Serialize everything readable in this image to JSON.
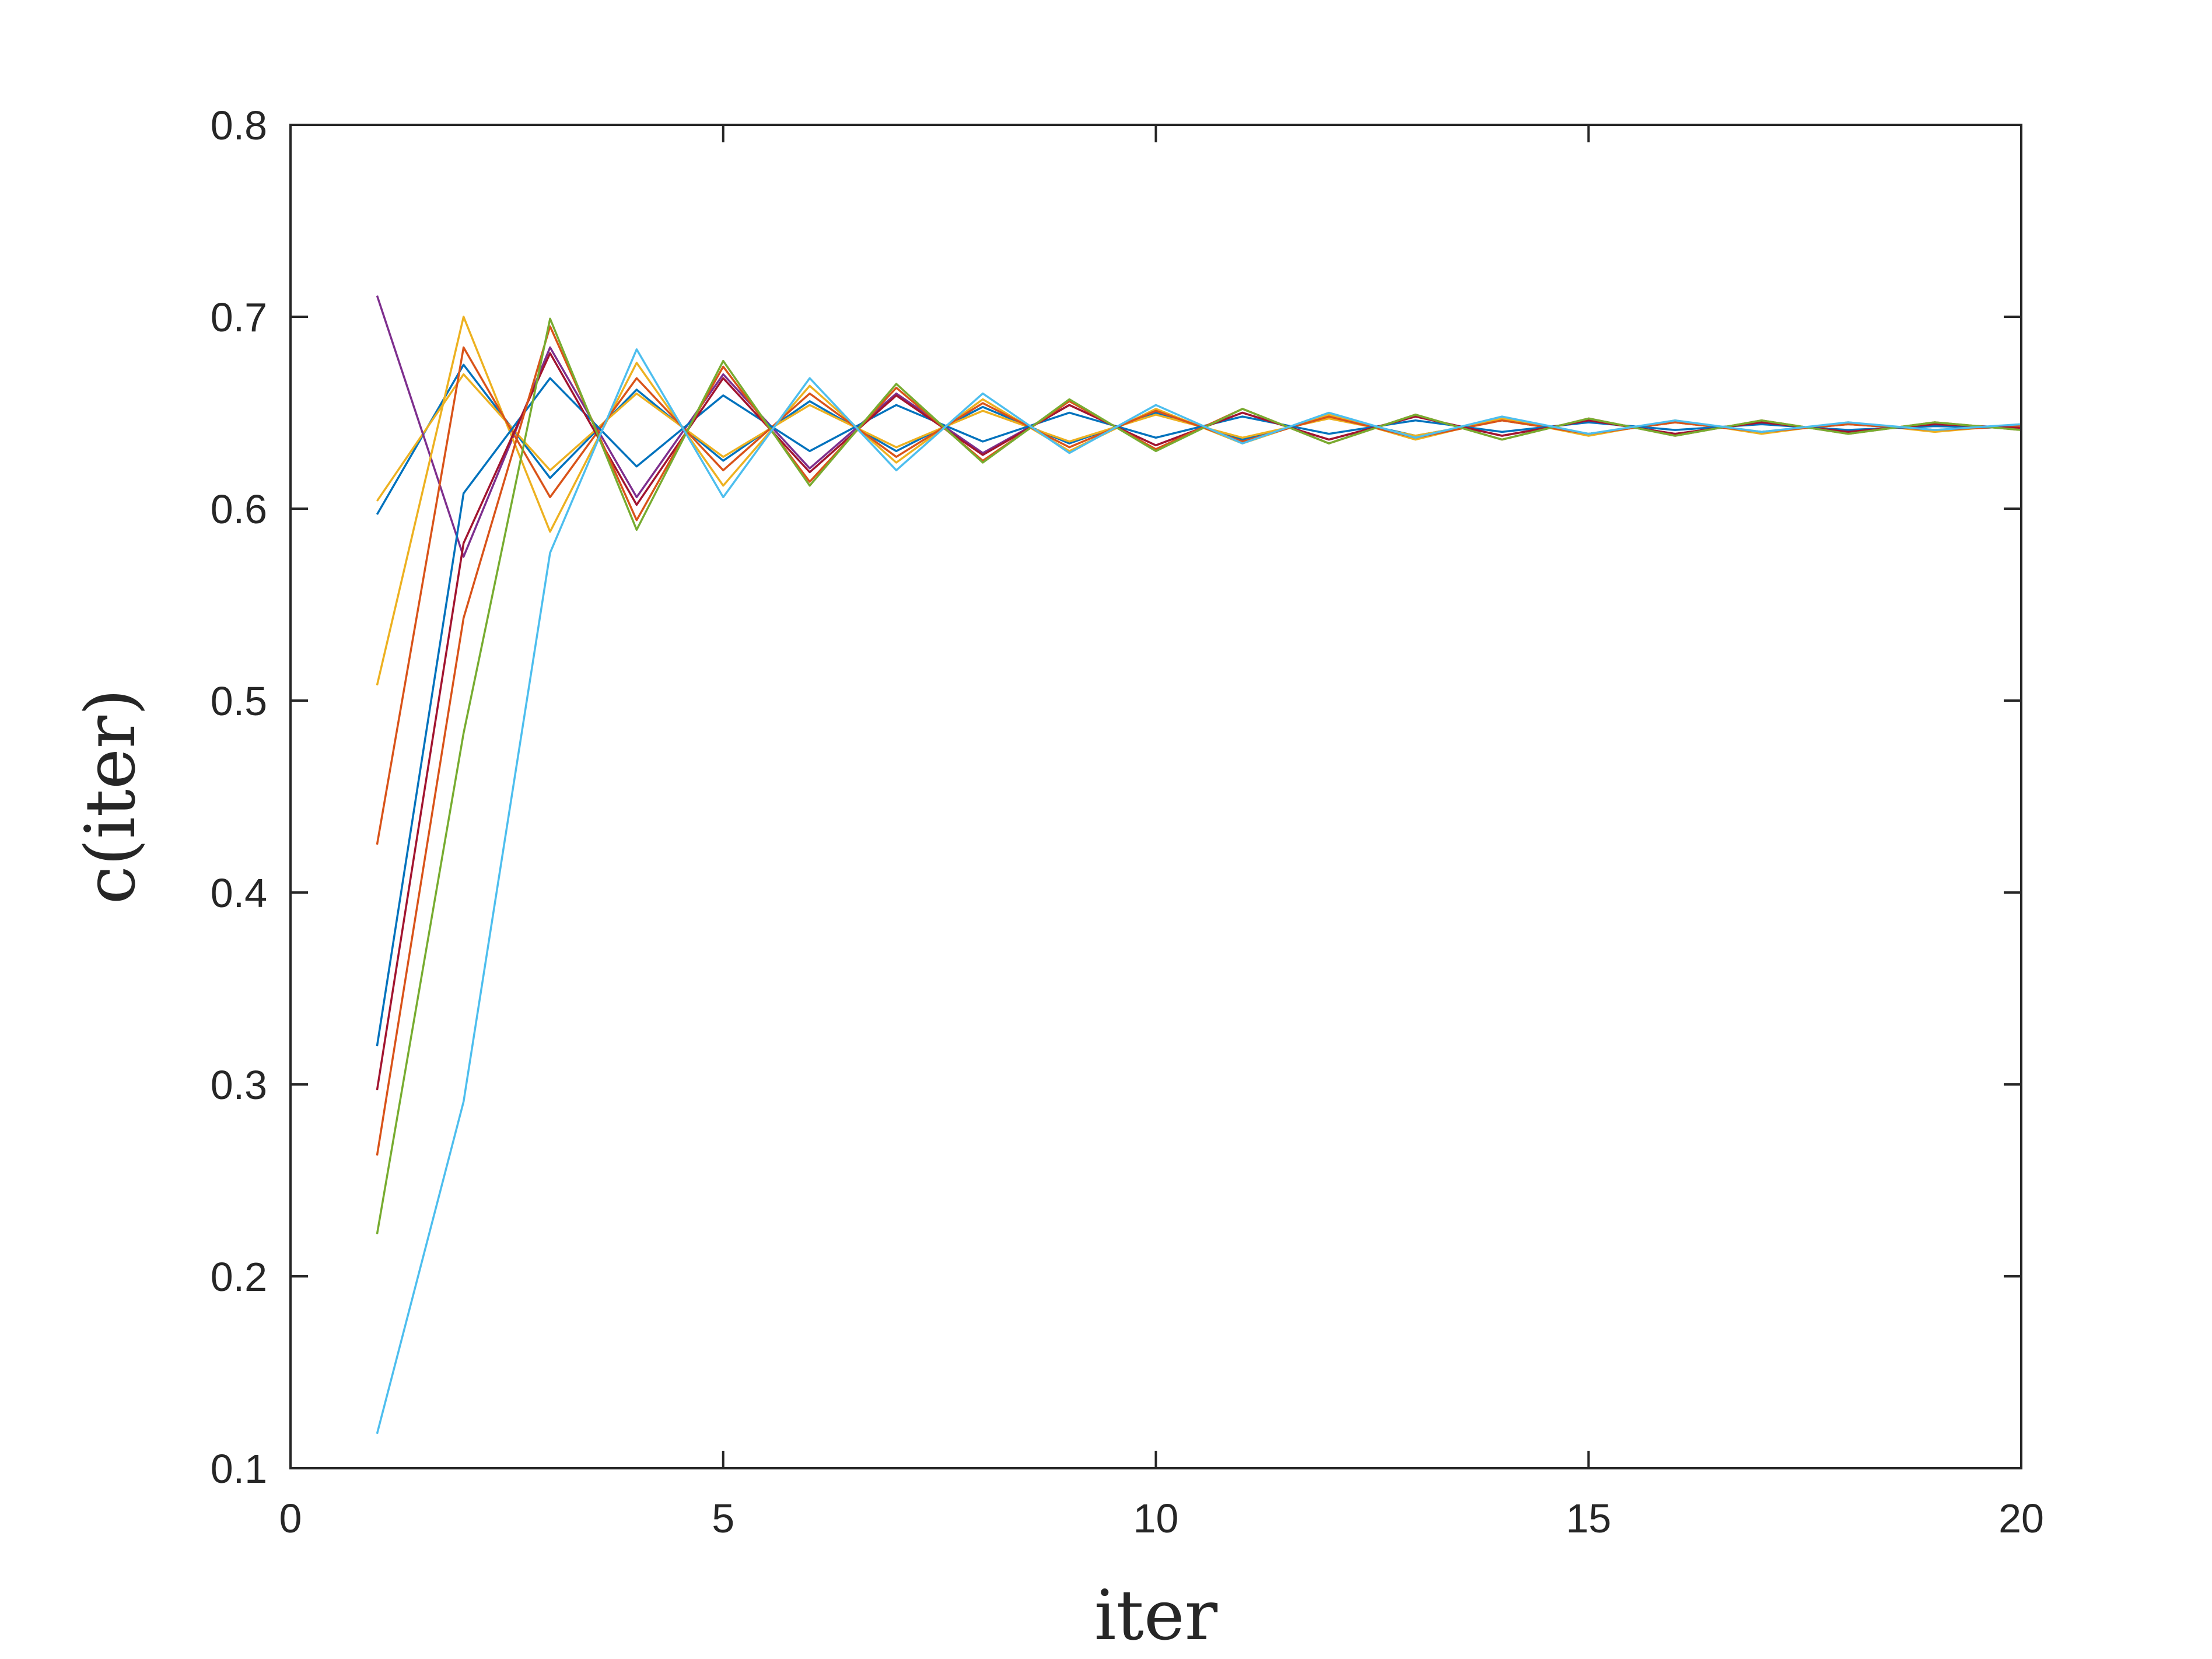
{
  "chart_data": {
    "type": "line",
    "title": "",
    "xlabel": "iter",
    "ylabel": "c(iter)",
    "xlim": [
      0,
      20
    ],
    "ylim": [
      0.1,
      0.8
    ],
    "xticks": [
      0,
      5,
      10,
      15,
      20
    ],
    "yticks": [
      0.1,
      0.2,
      0.3,
      0.4,
      0.5,
      0.6,
      0.7,
      0.8
    ],
    "xtick_labels": [
      "0",
      "5",
      "10",
      "15",
      "20"
    ],
    "ytick_labels": [
      "0.1",
      "0.2",
      "0.3",
      "0.4",
      "0.5",
      "0.6",
      "0.7",
      "0.8"
    ],
    "grid": false,
    "legend": "none",
    "x": [
      1,
      2,
      3,
      4,
      5,
      6,
      7,
      8,
      9,
      10,
      11,
      12,
      13,
      14,
      15,
      16,
      17,
      18,
      19,
      20
    ],
    "series": [
      {
        "color": "#0072BD",
        "values": [
          0.597,
          0.675,
          0.616,
          0.662,
          0.625,
          0.656,
          0.63,
          0.653,
          0.634,
          0.65,
          0.636,
          0.648,
          0.638,
          0.646,
          0.639,
          0.645,
          0.64,
          0.644,
          0.641,
          0.643
        ]
      },
      {
        "color": "#EDB120",
        "values": [
          0.604,
          0.67,
          0.62,
          0.66,
          0.627,
          0.654,
          0.632,
          0.651,
          0.635,
          0.649,
          0.637,
          0.647,
          0.638,
          0.646,
          0.639,
          0.645,
          0.64,
          0.644,
          0.641,
          0.643
        ]
      },
      {
        "color": "#7E2F8E",
        "values": [
          0.711,
          0.575,
          0.684,
          0.606,
          0.67,
          0.621,
          0.66,
          0.629,
          0.654,
          0.633,
          0.65,
          0.636,
          0.648,
          0.638,
          0.646,
          0.639,
          0.645,
          0.64,
          0.644,
          0.642
        ]
      },
      {
        "color": "#EDB120",
        "values": [
          0.508,
          0.7,
          0.588,
          0.676,
          0.612,
          0.664,
          0.624,
          0.657,
          0.63,
          0.652,
          0.634,
          0.649,
          0.636,
          0.647,
          0.638,
          0.646,
          0.639,
          0.645,
          0.64,
          0.644
        ]
      },
      {
        "color": "#D95319",
        "values": [
          0.425,
          0.684,
          0.606,
          0.668,
          0.62,
          0.66,
          0.627,
          0.655,
          0.632,
          0.651,
          0.635,
          0.648,
          0.637,
          0.646,
          0.639,
          0.645,
          0.64,
          0.644,
          0.641,
          0.643
        ]
      },
      {
        "color": "#0072BD",
        "values": [
          0.32,
          0.608,
          0.668,
          0.622,
          0.659,
          0.63,
          0.654,
          0.635,
          0.65,
          0.637,
          0.648,
          0.639,
          0.646,
          0.64,
          0.645,
          0.641,
          0.644,
          0.641,
          0.643,
          0.642
        ]
      },
      {
        "color": "#A2142F",
        "values": [
          0.297,
          0.582,
          0.681,
          0.602,
          0.668,
          0.619,
          0.659,
          0.628,
          0.654,
          0.633,
          0.65,
          0.636,
          0.648,
          0.638,
          0.646,
          0.639,
          0.645,
          0.64,
          0.644,
          0.642
        ]
      },
      {
        "color": "#D95319",
        "values": [
          0.263,
          0.543,
          0.695,
          0.594,
          0.674,
          0.614,
          0.663,
          0.625,
          0.656,
          0.631,
          0.652,
          0.634,
          0.649,
          0.636,
          0.647,
          0.638,
          0.646,
          0.639,
          0.645,
          0.641
        ]
      },
      {
        "color": "#77AC30",
        "values": [
          0.222,
          0.483,
          0.699,
          0.589,
          0.677,
          0.612,
          0.665,
          0.624,
          0.657,
          0.63,
          0.652,
          0.634,
          0.649,
          0.636,
          0.647,
          0.638,
          0.646,
          0.639,
          0.645,
          0.641
        ]
      },
      {
        "color": "#4DBEEE",
        "values": [
          0.118,
          0.291,
          0.577,
          0.683,
          0.606,
          0.668,
          0.62,
          0.66,
          0.629,
          0.654,
          0.634,
          0.65,
          0.637,
          0.648,
          0.639,
          0.646,
          0.64,
          0.645,
          0.641,
          0.644
        ]
      }
    ]
  }
}
